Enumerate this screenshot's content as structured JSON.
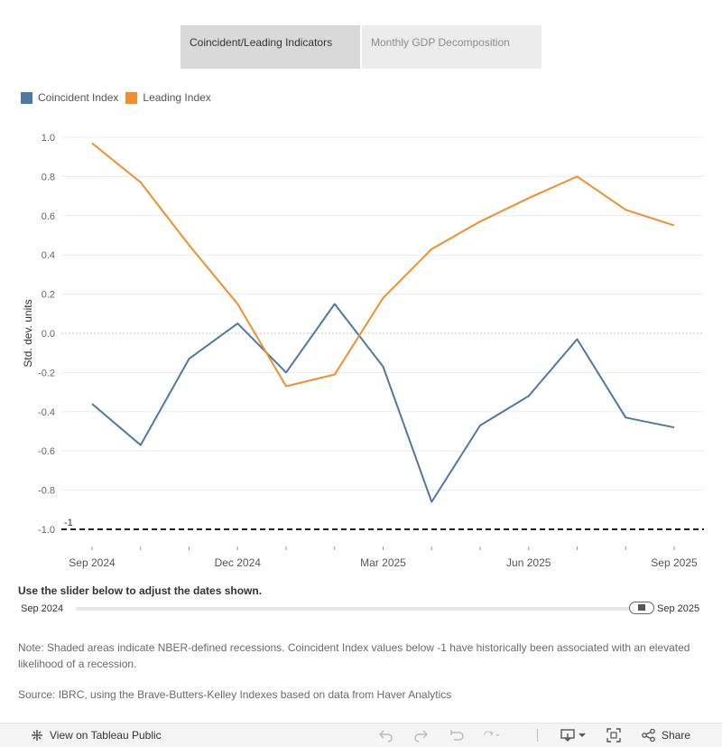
{
  "tabs": [
    {
      "label": "Coincident/Leading Indicators",
      "active": true
    },
    {
      "label": "Monthly GDP Decomposition",
      "active": false
    }
  ],
  "legend": [
    {
      "label": "Coincident Index",
      "color": "#4e79a7"
    },
    {
      "label": "Leading Index",
      "color": "#f28e2b"
    }
  ],
  "chart_data": {
    "type": "line",
    "ylabel": "Std. dev. units",
    "ylim": [
      -1.0,
      1.0
    ],
    "yticks": [
      "1.0",
      "0.8",
      "0.6",
      "0.4",
      "0.2",
      "0.0",
      "-0.2",
      "-0.4",
      "-0.6",
      "-0.8",
      "-1.0"
    ],
    "x": [
      "2024-09",
      "2024-10",
      "2024-11",
      "2024-12",
      "2025-01",
      "2025-02",
      "2025-03",
      "2025-04",
      "2025-05",
      "2025-06",
      "2025-07",
      "2025-08",
      "2025-09"
    ],
    "xtick_labels": [
      {
        "month": "2024-09",
        "label": "Sep 2024"
      },
      {
        "month": "2024-12",
        "label": "Dec 2024"
      },
      {
        "month": "2025-03",
        "label": "Mar 2025"
      },
      {
        "month": "2025-06",
        "label": "Jun 2025"
      },
      {
        "month": "2025-09",
        "label": "Sep 2025"
      }
    ],
    "series": [
      {
        "name": "Coincident Index",
        "color": "#4e79a7",
        "values": [
          -0.36,
          -0.57,
          -0.13,
          0.05,
          -0.2,
          0.15,
          -0.17,
          -0.86,
          -0.47,
          -0.32,
          -0.03,
          -0.43,
          -0.48
        ]
      },
      {
        "name": "Leading Index",
        "color": "#f28e2b",
        "values": [
          0.97,
          0.77,
          0.45,
          0.15,
          -0.27,
          -0.21,
          0.18,
          0.43,
          0.57,
          0.69,
          0.8,
          0.63,
          0.55
        ]
      }
    ],
    "reference_line": {
      "value": -1,
      "label": "-1",
      "style": "dashed"
    },
    "zero_line": {
      "value": 0,
      "style": "dotted"
    },
    "grid": true,
    "legend_position": "top-left"
  },
  "slider": {
    "caption": "Use the slider below to adjust the dates shown.",
    "start_label": "Sep 2024",
    "end_label": "Sep 2025"
  },
  "note": "Note: Shaded areas indicate NBER-defined recessions. Coincident Index values below -1 have historically been associated with an elevated likelihood of a recession.",
  "source": "Source: IBRC, using the Brave-Butters-Kelley Indexes based on data from Haver Analytics",
  "footer": {
    "view_label": "View on Tableau Public",
    "share_label": "Share",
    "icons": [
      "tableau-icon",
      "undo-icon",
      "redo-icon",
      "revert-icon",
      "refresh-icon",
      "download-icon",
      "fullscreen-icon",
      "share-icon"
    ]
  }
}
